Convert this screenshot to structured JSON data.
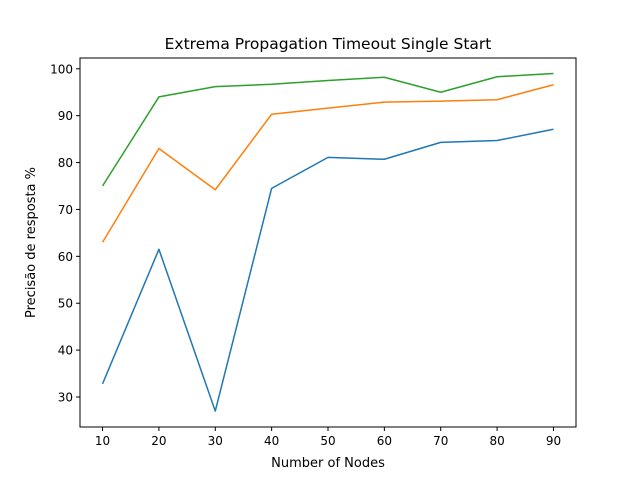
{
  "chart_data": {
    "type": "line",
    "title": "Extrema Propagation Timeout Single Start",
    "xlabel": "Number of Nodes",
    "ylabel": "Precisão de resposta %",
    "x": [
      10,
      20,
      30,
      40,
      50,
      60,
      70,
      80,
      90
    ],
    "xlim": [
      6.0,
      94.0
    ],
    "ylim": [
      23.6,
      102.3
    ],
    "yticks": [
      30,
      40,
      50,
      60,
      70,
      80,
      90,
      100
    ],
    "grid": false,
    "series": [
      {
        "color": "#1f77b4",
        "values": [
          32.8,
          61.5,
          27.0,
          74.5,
          81.1,
          80.7,
          84.3,
          84.7,
          87.1
        ]
      },
      {
        "color": "#ff7f0e",
        "values": [
          63.0,
          83.0,
          74.2,
          90.3,
          91.6,
          92.9,
          93.1,
          93.4,
          96.6
        ]
      },
      {
        "color": "#2ca02c",
        "values": [
          75.0,
          94.0,
          96.2,
          96.7,
          97.5,
          98.2,
          95.0,
          98.3,
          99.0
        ]
      }
    ]
  }
}
